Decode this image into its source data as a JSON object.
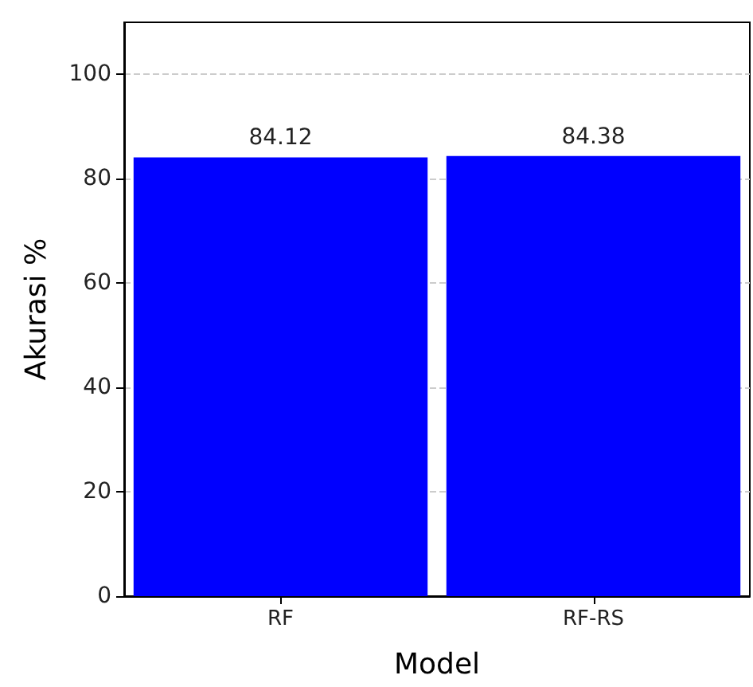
{
  "chart_data": {
    "type": "bar",
    "xlabel": "Model",
    "ylabel": "Akurasi %",
    "categories": [
      "RF",
      "RF-RS"
    ],
    "values": [
      84.12,
      84.38
    ],
    "color": "#0000ff",
    "data_labels": true,
    "ylim": [
      0,
      110
    ],
    "yticks": [
      0,
      20,
      40,
      60,
      80,
      100
    ],
    "grid": "y"
  }
}
